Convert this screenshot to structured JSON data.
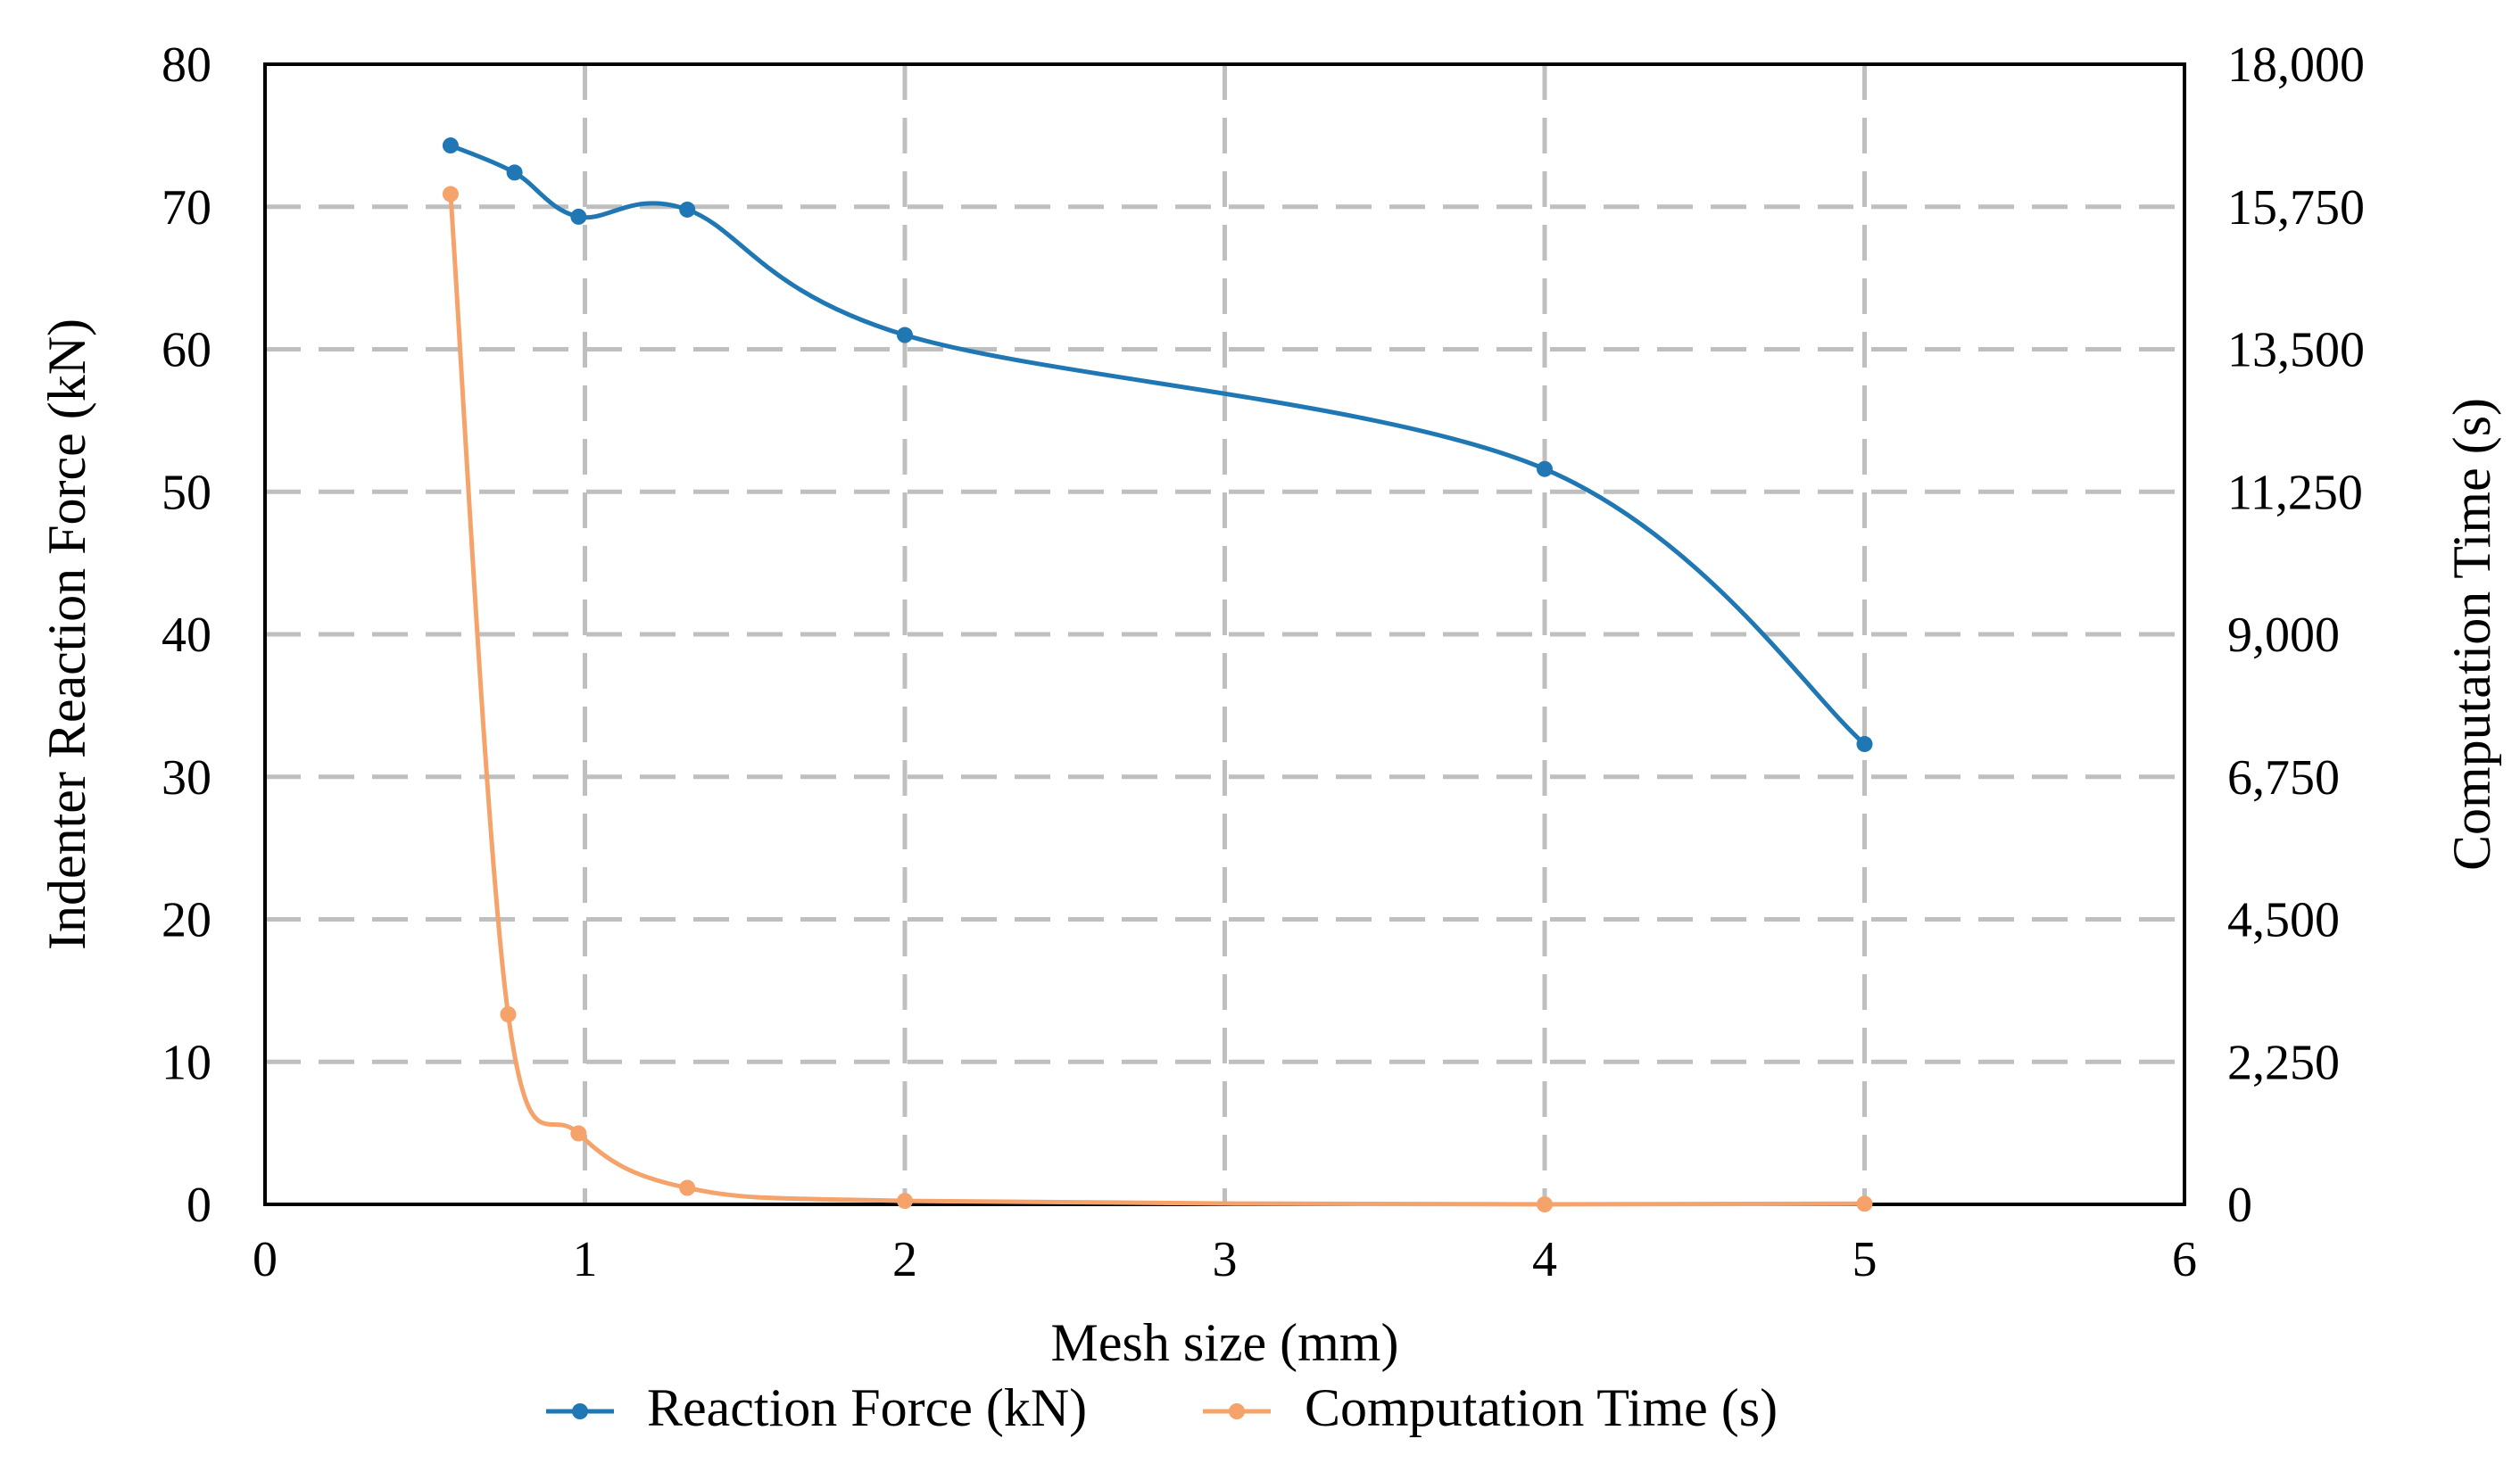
{
  "chart_data": {
    "type": "line",
    "title": "",
    "xlabel": "Mesh size (mm)",
    "ylabel": "Indenter Reaction Force (kN)",
    "y2label": "Computation Time (s)",
    "xlim": [
      0,
      6
    ],
    "ylim": [
      0,
      80
    ],
    "y2lim": [
      0,
      18000
    ],
    "x_ticks": [
      "0",
      "1",
      "2",
      "3",
      "4",
      "5",
      "6"
    ],
    "y_ticks": [
      "0",
      "10",
      "20",
      "30",
      "40",
      "50",
      "60",
      "70",
      "80"
    ],
    "y2_ticks": [
      "0",
      "2,250",
      "4,500",
      "6,750",
      "9,000",
      "11,250",
      "13,500",
      "15,750",
      "18,000"
    ],
    "grid": true,
    "legend_position": "bottom",
    "series": [
      {
        "name": "Reaction Force (kN)",
        "axis": "left",
        "color": "#1f77b4",
        "x": [
          0.58,
          0.78,
          0.98,
          1.32,
          2.0,
          4.0,
          5.0
        ],
        "values": [
          74.3,
          72.4,
          69.3,
          69.8,
          61.0,
          51.6,
          32.3
        ]
      },
      {
        "name": "Computation Time (s)",
        "axis": "right",
        "color": "#f5a26b",
        "x": [
          0.58,
          0.76,
          0.98,
          1.32,
          2.0,
          4.0,
          5.0
        ],
        "values": [
          15950,
          3000,
          1120,
          260,
          55,
          0,
          10
        ]
      }
    ]
  }
}
